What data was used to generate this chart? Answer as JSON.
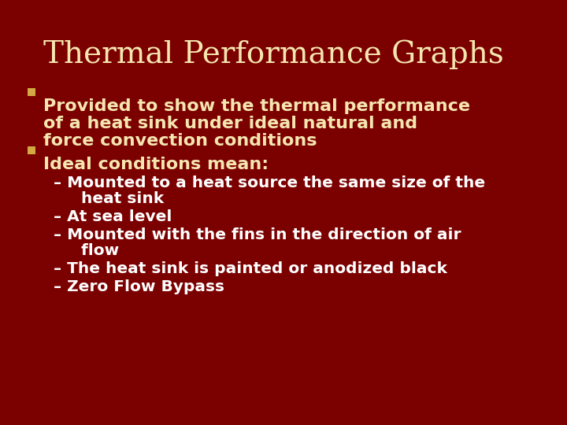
{
  "title": "Thermal Performance Graphs",
  "title_color": "#F5E6B0",
  "title_fontsize": 28,
  "background_color": "#7B0000",
  "bullet_color": "#D4A843",
  "text_color": "#F5E6B0",
  "sub_text_color": "#FFFFFF",
  "bullet1_lines": [
    "Provided to show the thermal performance",
    "of a heat sink under ideal natural and",
    "force convection conditions"
  ],
  "bullet2": "Ideal conditions mean:",
  "sub_bullets": [
    [
      "– Mounted to a heat source the same size of the",
      "     heat sink"
    ],
    [
      "– At sea level"
    ],
    [
      "– Mounted with the fins in the direction of air",
      "     flow"
    ],
    [
      "– The heat sink is painted or anodized black"
    ],
    [
      "– Zero Flow Bypass"
    ]
  ],
  "bullet_fontsize": 16,
  "sub_bullet_fontsize": 14.5
}
